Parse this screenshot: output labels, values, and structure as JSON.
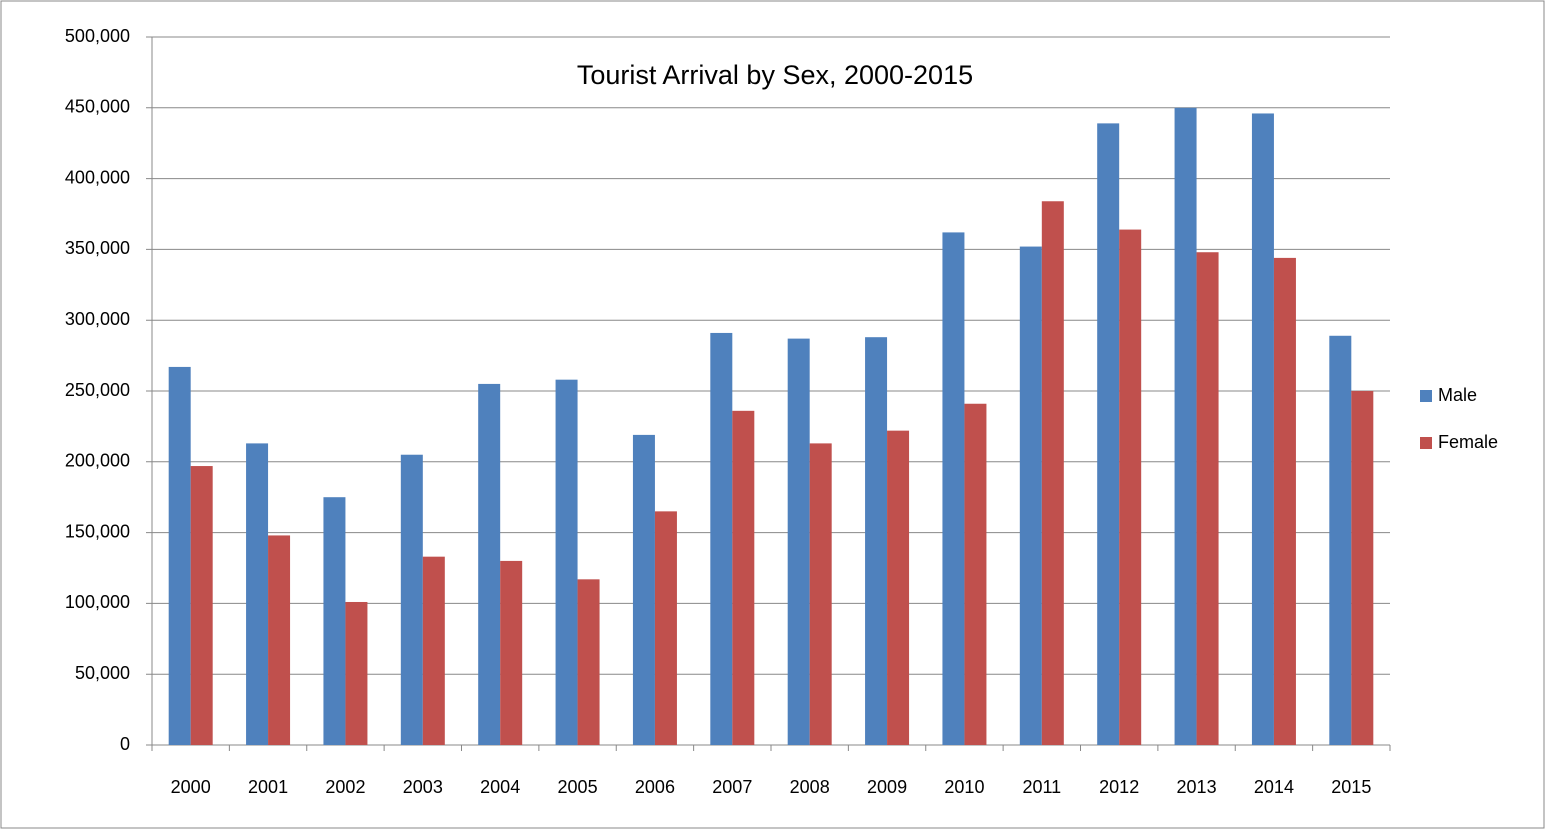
{
  "chart_data": {
    "type": "bar",
    "title": "Tourist Arrival by Sex, 2000-2015",
    "categories": [
      "2000",
      "2001",
      "2002",
      "2003",
      "2004",
      "2005",
      "2006",
      "2007",
      "2008",
      "2009",
      "2010",
      "2011",
      "2012",
      "2013",
      "2014",
      "2015"
    ],
    "series": [
      {
        "name": "Male",
        "color": "#4f81bd",
        "values": [
          267000,
          213000,
          175000,
          205000,
          255000,
          258000,
          219000,
          291000,
          287000,
          288000,
          362000,
          352000,
          439000,
          450000,
          446000,
          289000
        ]
      },
      {
        "name": "Female",
        "color": "#c0504d",
        "values": [
          197000,
          148000,
          101000,
          133000,
          130000,
          117000,
          165000,
          236000,
          213000,
          222000,
          241000,
          384000,
          364000,
          348000,
          344000,
          250000
        ]
      }
    ],
    "ylim": [
      0,
      500000
    ],
    "yticks": [
      0,
      {
        "value": 50000,
        "label": "50,000"
      },
      {
        "value": 100000,
        "label": "100,000"
      },
      {
        "value": 150000,
        "label": "150,000"
      },
      {
        "value": 200000,
        "label": "200,000"
      },
      {
        "value": 250000,
        "label": "250,000"
      },
      {
        "value": 300000,
        "label": "300,000"
      },
      {
        "value": 350000,
        "label": "350,000"
      },
      {
        "value": 400000,
        "label": "400,000"
      },
      {
        "value": 450000,
        "label": "450,000"
      },
      {
        "value": 500000,
        "label": "500,000"
      }
    ],
    "grid": true,
    "legend": "right"
  }
}
